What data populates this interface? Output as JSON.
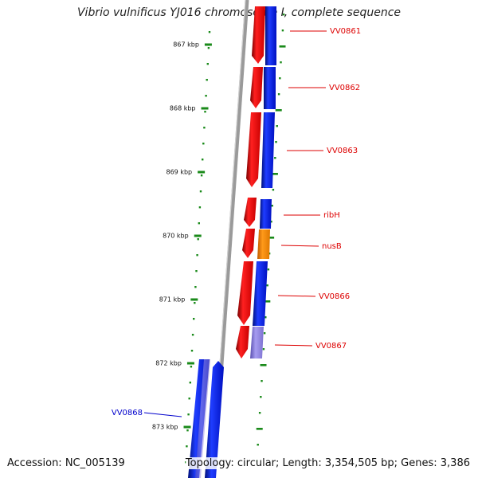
{
  "title": "Vibrio vulnificus YJ016 chromosome I, complete sequence",
  "accession": "Accession: NC_005139",
  "topology": "Topology: circular; Length: 3,354,505 bp; Genes: 3,386",
  "ruler_labels": [
    "867 kbp",
    "868 kbp",
    "869 kbp",
    "870 kbp",
    "871 kbp",
    "872 kbp",
    "873 kbp"
  ],
  "colors": {
    "forward_strand": "#e8000b",
    "reverse_strand": "#0019e6",
    "highlight_gene": "#ff8c00",
    "faint_gene": "#8a80d6",
    "backbone": "#888888",
    "ticks": "#1a8a1a",
    "label_red": "#dd0000",
    "label_blue": "#0000cc"
  },
  "genes": [
    {
      "label": "VV0861",
      "strand": "reverse",
      "color_key": "reverse_strand"
    },
    {
      "label": "VV0862",
      "strand": "reverse",
      "color_key": "reverse_strand"
    },
    {
      "label": "VV0863",
      "strand": "reverse",
      "color_key": "reverse_strand"
    },
    {
      "label": "ribH",
      "strand": "reverse",
      "color_key": "reverse_strand"
    },
    {
      "label": "nusB",
      "strand": "reverse",
      "color_key": "highlight_gene"
    },
    {
      "label": "VV0866",
      "strand": "reverse",
      "color_key": "reverse_strand"
    },
    {
      "label": "VV0867",
      "strand": "reverse",
      "color_key": "faint_gene"
    },
    {
      "label": "VV0868",
      "strand": "forward",
      "color_key": "reverse_strand"
    }
  ]
}
